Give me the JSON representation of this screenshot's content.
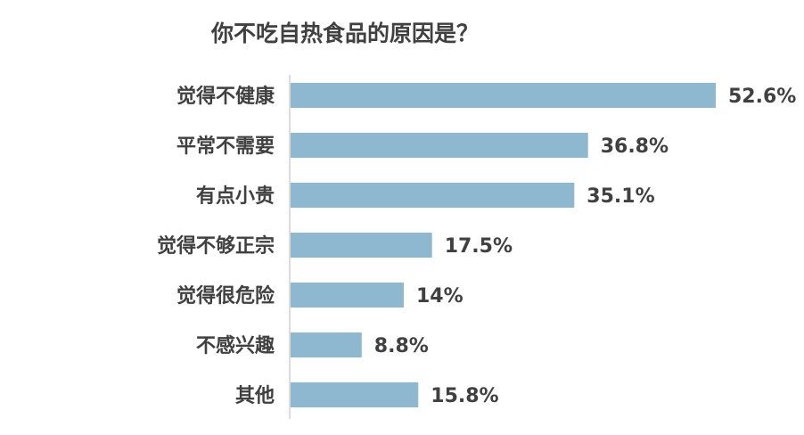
{
  "chart_data": {
    "type": "bar",
    "orientation": "horizontal",
    "title": "你不吃自热食品的原因是？",
    "categories": [
      "觉得不健康",
      "平常不需要",
      "有点小贵",
      "觉得不够正宗",
      "觉得很危险",
      "不感兴趣",
      "其他"
    ],
    "values": [
      52.6,
      36.8,
      35.1,
      17.5,
      14,
      8.8,
      15.8
    ],
    "value_labels": [
      "52.6%",
      "36.8%",
      "35.1%",
      "17.5%",
      "14%",
      "8.8%",
      "15.8%"
    ],
    "xlim": [
      0,
      52.6
    ],
    "grid": false,
    "legend": "none",
    "colors": {
      "bar": "#8db8cf",
      "text": "#404040",
      "axis": "#d0d0d0"
    }
  }
}
